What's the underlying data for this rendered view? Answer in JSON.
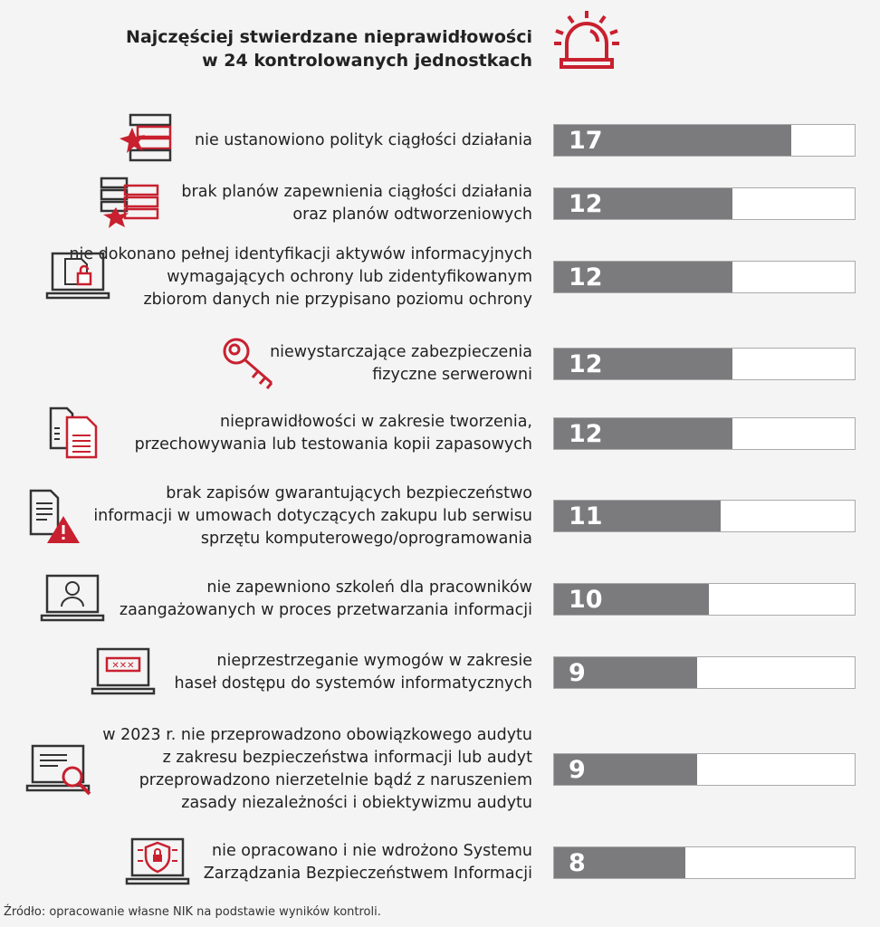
{
  "chart_data": {
    "type": "bar",
    "orientation": "horizontal",
    "title": "Najczęściej stwierdzane nieprawidłowości\nw 24 kontrolowanych jednostkach",
    "title_lines": [
      "Najczęściej stwierdzane nieprawidłowości",
      "w 24 kontrolowanych jednostkach"
    ],
    "total": 24,
    "bar_color": "#7b7b7e",
    "accent_color": "#c8202f",
    "categories": [
      {
        "lines": [
          "nie ustanowiono polityk ciągłości działania"
        ],
        "value": 17,
        "icon": "server-burst-icon"
      },
      {
        "lines": [
          "brak planów zapewnienia ciągłości działania",
          "oraz planów odtworzeniowych"
        ],
        "value": 12,
        "icon": "servers-burst-icon"
      },
      {
        "lines": [
          "nie dokonano pełnej identyfikacji aktywów informacyjnych",
          "wymagających ochrony lub zidentyfikowanym",
          "zbiorom danych nie przypisano poziomu ochrony"
        ],
        "value": 12,
        "icon": "laptop-lock-icon"
      },
      {
        "lines": [
          "niewystarczające zabezpieczenia",
          "fizyczne serwerowni"
        ],
        "value": 12,
        "icon": "key-icon"
      },
      {
        "lines": [
          "nieprawidłowości w zakresie tworzenia,",
          "przechowywania  lub testowania kopii zapasowych"
        ],
        "value": 12,
        "icon": "document-copy-icon"
      },
      {
        "lines": [
          "brak zapisów gwarantujących bezpieczeństwo",
          "informacji w umowach dotyczących zakupu lub serwisu",
          "sprzętu komputerowego/oprogramowania"
        ],
        "value": 11,
        "icon": "document-warning-icon"
      },
      {
        "lines": [
          "nie zapewniono szkoleń dla pracowników",
          "zaangażowanych w proces przetwarzania informacji"
        ],
        "value": 10,
        "icon": "laptop-user-icon"
      },
      {
        "lines": [
          "nieprzestrzeganie wymogów w zakresie",
          "haseł dostępu do systemów informatycznych"
        ],
        "value": 9,
        "icon": "laptop-password-icon"
      },
      {
        "lines": [
          "w 2023 r. nie przeprowadzono obowiązkowego audytu",
          "z zakresu bezpieczeństwa informacji lub audyt",
          "przeprowadzono nierzetelnie bądź z naruszeniem",
          "zasady niezależności i obiektywizmu audytu"
        ],
        "value": 9,
        "icon": "laptop-magnifier-icon"
      },
      {
        "lines": [
          "nie opracowano i nie wdrożono Systemu",
          "Zarządzania Bezpieczeństwem Informacji"
        ],
        "value": 8,
        "icon": "laptop-shield-icon"
      }
    ]
  },
  "source": "Źródło: opracowanie własne NIK na podstawie wyników kontroli."
}
